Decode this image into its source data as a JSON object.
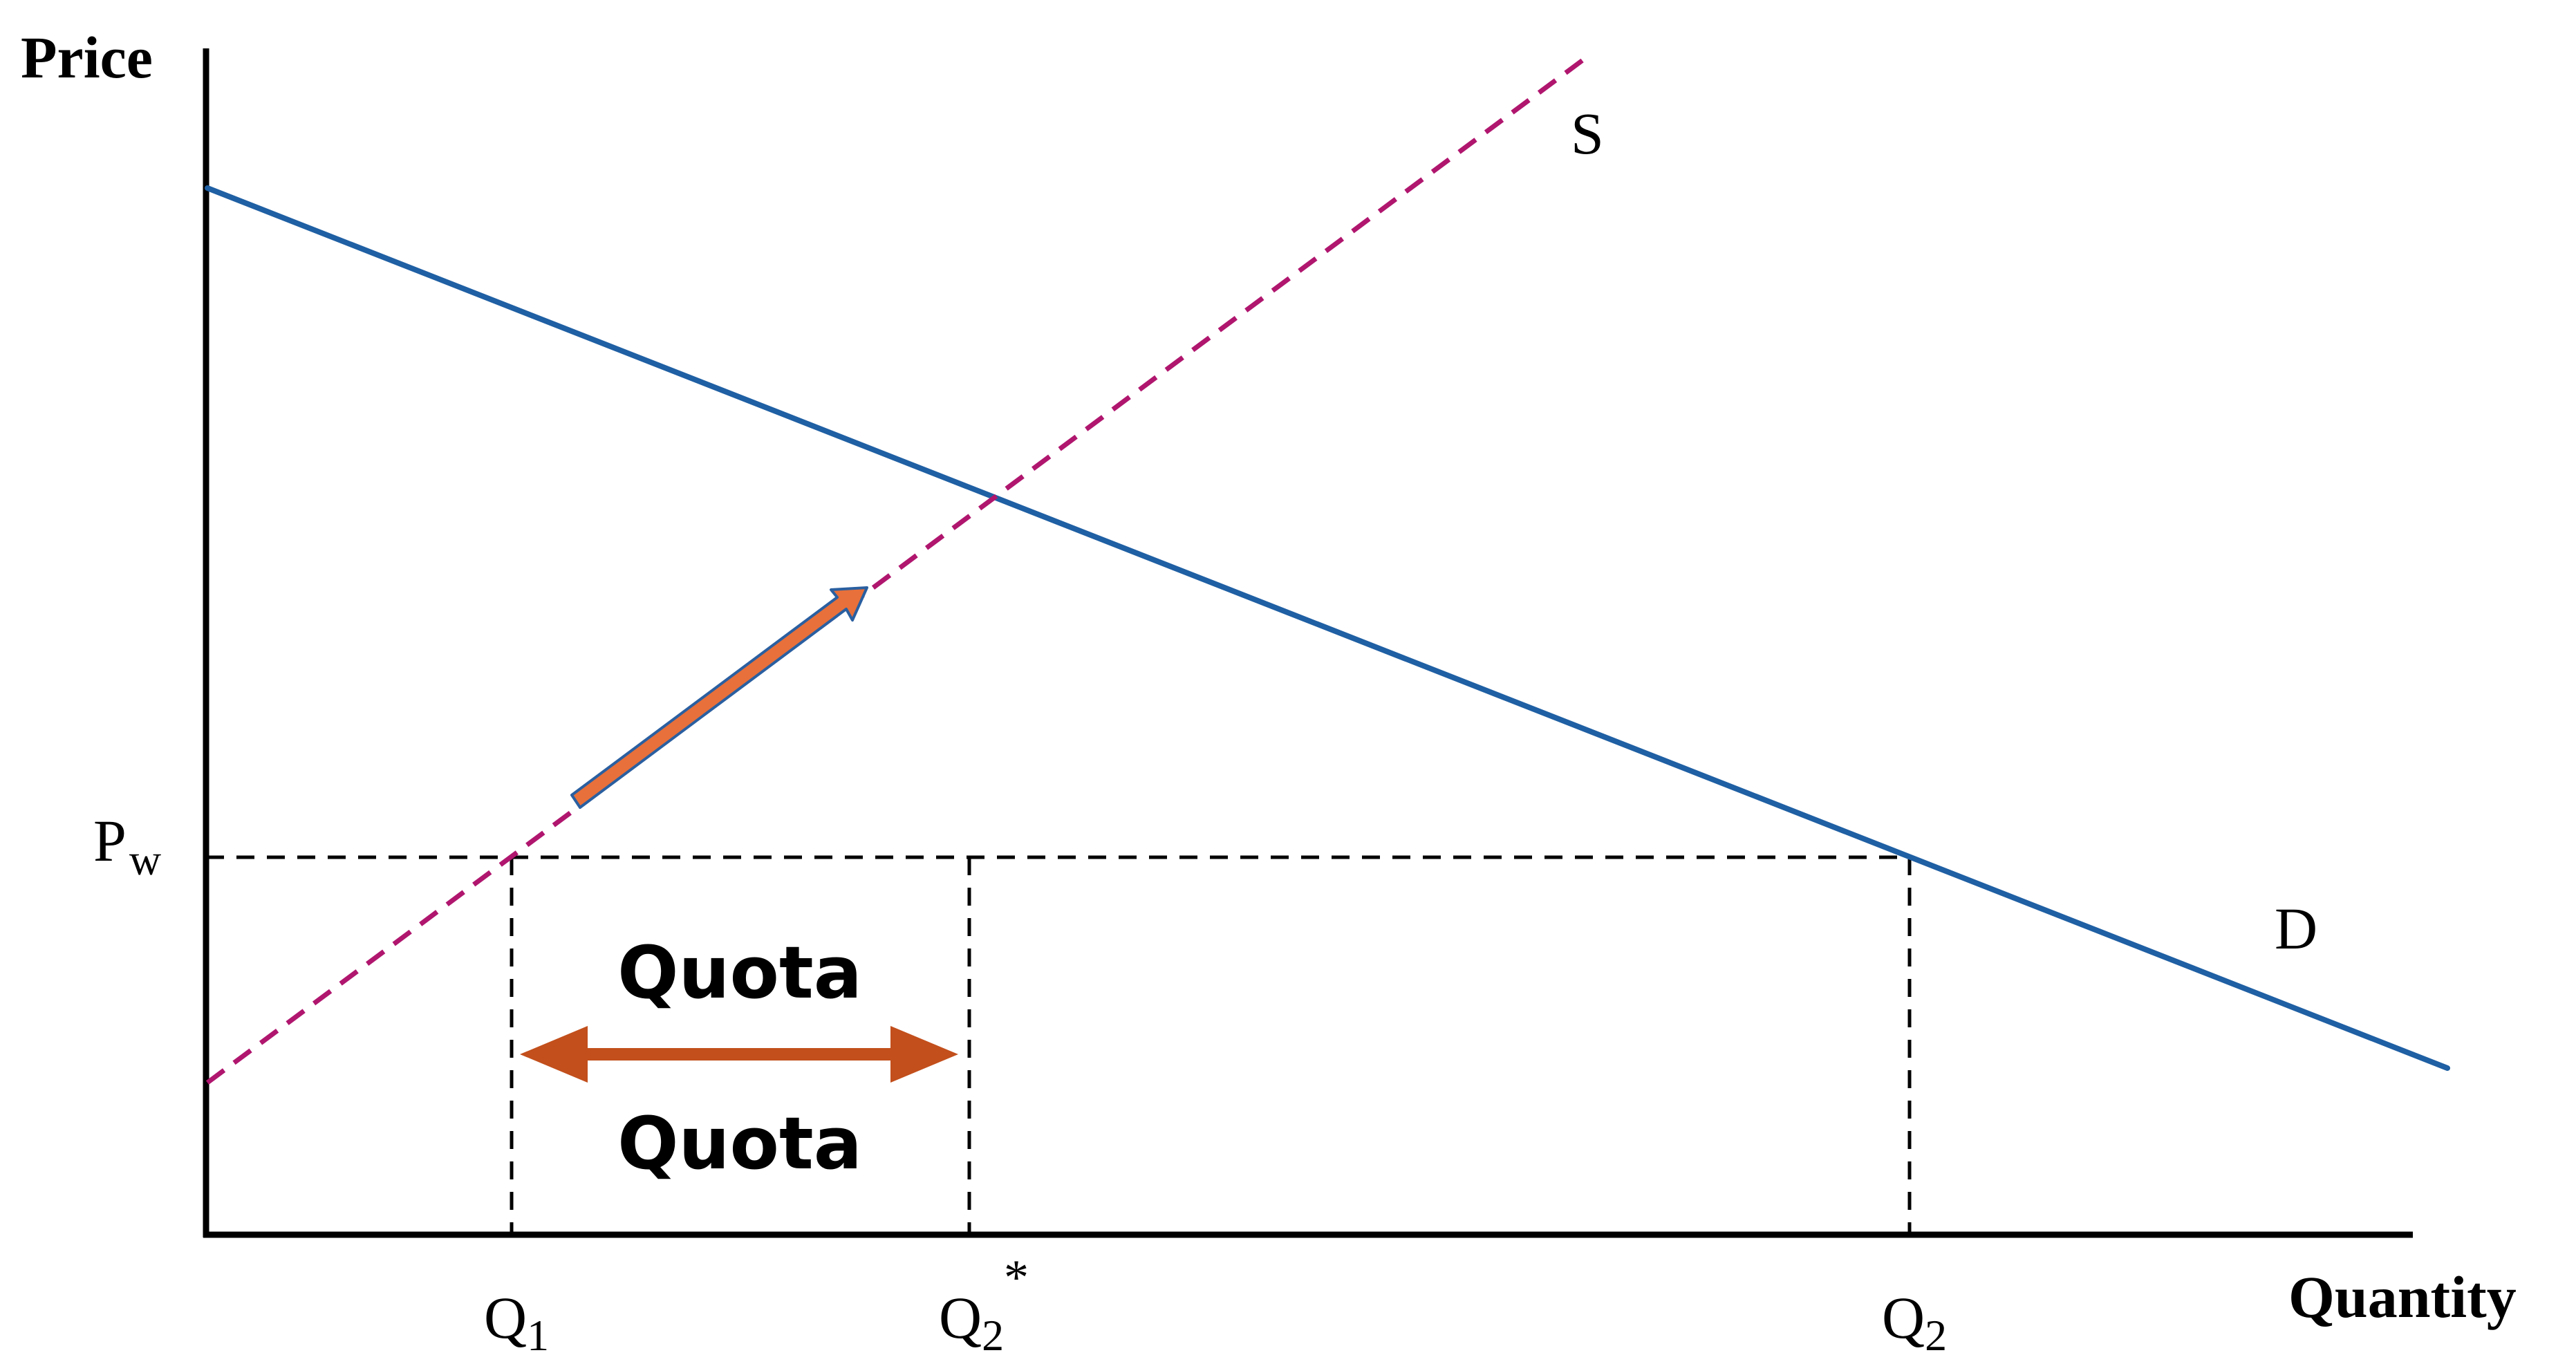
{
  "axes": {
    "y_label": "Price",
    "x_label": "Quantity"
  },
  "price_level": {
    "label": "P",
    "subscript": "w"
  },
  "quantity_ticks": [
    {
      "base": "Q",
      "sub": "1",
      "sup": ""
    },
    {
      "base": "Q",
      "sub": "2",
      "sup": "*"
    },
    {
      "base": "Q",
      "sub": "2",
      "sup": ""
    }
  ],
  "curves": {
    "supply_label": "S",
    "demand_label": "D"
  },
  "quota": {
    "label_top": "Quota",
    "label_bottom": "Quota"
  },
  "colors": {
    "demand": "#1f5fa3",
    "supply": "#b0166e",
    "quota_arrow": "#c24f1c",
    "shift_arrow_fill": "#e8703a",
    "shift_arrow_outline": "#2a5fa0",
    "axes": "#000000",
    "guides": "#000000"
  }
}
